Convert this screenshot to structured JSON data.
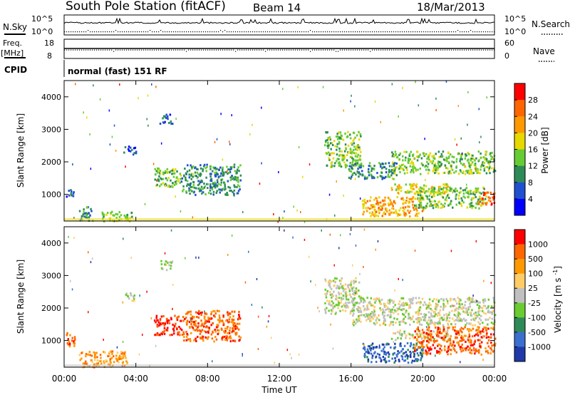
{
  "header": {
    "station": "South Pole Station (fitACF)",
    "beam": "Beam 14",
    "date": "18/Mar/2013"
  },
  "sky_panel": {
    "left_label": "N.Sky",
    "right_label": "N.Search",
    "left_ticks": [
      "10^5",
      "10^0"
    ],
    "right_ticks": [
      "10^5",
      "10^0"
    ]
  },
  "freq_panel": {
    "label_line1": "Freq.",
    "label_line2": "[MHz]",
    "right_label": "Nave",
    "left_ticks": [
      "18",
      "8"
    ],
    "right_ticks": [
      "60",
      "0"
    ]
  },
  "cpid": {
    "label": "CPID",
    "text": "normal (fast) 151 RF"
  },
  "x_axis": {
    "label": "Time UT",
    "ticks": [
      "00:00",
      "04:00",
      "08:00",
      "12:00",
      "16:00",
      "20:00",
      "00:00"
    ]
  },
  "chart_data": [
    {
      "type": "heatmap",
      "panel": "power",
      "ylabel": "Slant Range [km]",
      "xlabel": "",
      "y_ticks": [
        "1000",
        "2000",
        "3000",
        "4000"
      ],
      "ylim": [
        180,
        4500
      ],
      "xlim_hours": [
        0,
        24
      ],
      "colorbar": {
        "label": "Power [dB]",
        "ticks": [
          "4",
          "8",
          "12",
          "16",
          "20",
          "24",
          "28"
        ],
        "colors": [
          "#0000ff",
          "#2050d0",
          "#2e8b57",
          "#66cc33",
          "#e6d800",
          "#ff9900",
          "#ff6600",
          "#ff0000"
        ]
      },
      "patches": [
        {
          "t0": 0.1,
          "t1": 0.5,
          "r0": 900,
          "r1": 1200,
          "level": 1
        },
        {
          "t0": 0.8,
          "t1": 1.6,
          "r0": 200,
          "r1": 650,
          "level": 2
        },
        {
          "t0": 2.0,
          "t1": 3.8,
          "r0": 200,
          "r1": 500,
          "level": 3
        },
        {
          "t0": 3.3,
          "t1": 4.0,
          "r0": 2250,
          "r1": 2500,
          "level": 1
        },
        {
          "t0": 5.3,
          "t1": 6.0,
          "r0": 3200,
          "r1": 3500,
          "level": 1
        },
        {
          "t0": 5.0,
          "t1": 6.5,
          "r0": 1250,
          "r1": 1850,
          "level": 3
        },
        {
          "t0": 6.5,
          "t1": 9.8,
          "r0": 1000,
          "r1": 1950,
          "level": 2
        },
        {
          "t0": 14.5,
          "t1": 16.5,
          "r0": 1850,
          "r1": 2950,
          "level": 3
        },
        {
          "t0": 15.8,
          "t1": 18.5,
          "r0": 1500,
          "r1": 2000,
          "level": 2
        },
        {
          "t0": 18.2,
          "t1": 24.0,
          "r0": 1650,
          "r1": 2350,
          "level": 3
        },
        {
          "t0": 18.2,
          "t1": 21.5,
          "r0": 1050,
          "r1": 1350,
          "level": 4
        },
        {
          "t0": 16.6,
          "t1": 20.0,
          "r0": 350,
          "r1": 950,
          "level": 5
        },
        {
          "t0": 19.5,
          "t1": 23.5,
          "r0": 600,
          "r1": 1250,
          "level": 3
        },
        {
          "t0": 23.0,
          "t1": 24.0,
          "r0": 700,
          "r1": 1100,
          "level": 6
        }
      ]
    },
    {
      "type": "heatmap",
      "panel": "velocity",
      "ylabel": "Slant Range [km]",
      "xlabel": "Time UT",
      "y_ticks": [
        "1000",
        "2000",
        "3000",
        "4000"
      ],
      "ylim": [
        180,
        4500
      ],
      "xlim_hours": [
        0,
        24
      ],
      "colorbar": {
        "label": "Velocity [m s^-1]",
        "ticks": [
          "1000",
          "500",
          "100",
          "25",
          "-25",
          "-100",
          "-500",
          "-1000"
        ],
        "colors": [
          "#1f3aa8",
          "#3b6fd0",
          "#2e8b57",
          "#6acc30",
          "#c0c0c0",
          "#ffcc66",
          "#ff9900",
          "#ff6600",
          "#ff0000"
        ]
      },
      "patches": [
        {
          "t0": 0.1,
          "t1": 0.6,
          "r0": 800,
          "r1": 1300,
          "level": 7
        },
        {
          "t0": 0.8,
          "t1": 3.5,
          "r0": 200,
          "r1": 700,
          "level": 6
        },
        {
          "t0": 3.3,
          "t1": 4.0,
          "r0": 2250,
          "r1": 2500,
          "level": 4
        },
        {
          "t0": 5.3,
          "t1": 6.0,
          "r0": 3200,
          "r1": 3500,
          "level": 4
        },
        {
          "t0": 5.0,
          "t1": 6.6,
          "r0": 1200,
          "r1": 1800,
          "level": 8
        },
        {
          "t0": 6.6,
          "t1": 9.8,
          "r0": 1000,
          "r1": 1950,
          "level": 7
        },
        {
          "t0": 14.5,
          "t1": 16.5,
          "r0": 1850,
          "r1": 2950,
          "level": 4
        },
        {
          "t0": 16.0,
          "t1": 24.0,
          "r0": 1500,
          "r1": 2350,
          "level": 4
        },
        {
          "t0": 18.2,
          "t1": 21.5,
          "r0": 1050,
          "r1": 1350,
          "level": 4
        },
        {
          "t0": 16.6,
          "t1": 20.0,
          "r0": 350,
          "r1": 950,
          "level": 1
        },
        {
          "t0": 19.5,
          "t1": 24.0,
          "r0": 600,
          "r1": 1450,
          "level": 7
        }
      ]
    }
  ]
}
